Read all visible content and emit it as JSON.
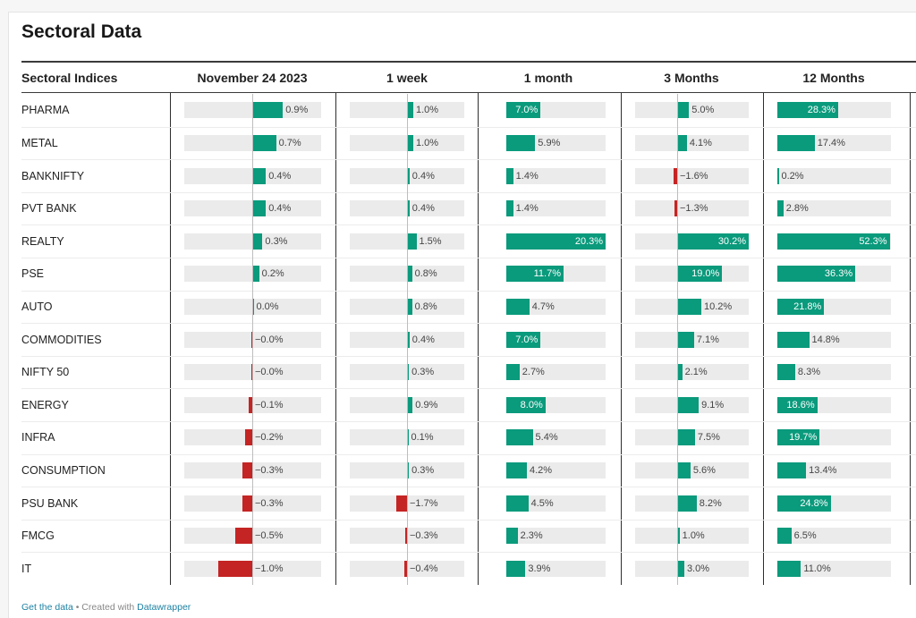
{
  "title": "Sectoral Data",
  "footer": {
    "get_data": "Get the data",
    "separator": " • Created with ",
    "created_with": "Datawrapper"
  },
  "colors": {
    "positive": "#0a9a7c",
    "negative": "#c42423",
    "track": "#ebebeb"
  },
  "chart_data": {
    "type": "table",
    "row_header": "Sectoral Indices",
    "columns": [
      "November 24 2023",
      "1 week",
      "1 month",
      "3 Months",
      "12 Months"
    ],
    "rows": [
      {
        "name": "PHARMA",
        "values": [
          0.9,
          1.0,
          7.0,
          5.0,
          28.3
        ]
      },
      {
        "name": "METAL",
        "values": [
          0.7,
          1.0,
          5.9,
          4.1,
          17.4
        ]
      },
      {
        "name": "BANKNIFTY",
        "values": [
          0.4,
          0.4,
          1.4,
          -1.6,
          0.2
        ]
      },
      {
        "name": "PVT BANK",
        "values": [
          0.4,
          0.4,
          1.4,
          -1.3,
          2.8
        ]
      },
      {
        "name": "REALTY",
        "values": [
          0.3,
          1.5,
          20.3,
          30.2,
          52.3
        ]
      },
      {
        "name": "PSE",
        "values": [
          0.2,
          0.8,
          11.7,
          19.0,
          36.3
        ]
      },
      {
        "name": "AUTO",
        "values": [
          0.0,
          0.8,
          4.7,
          10.2,
          21.8
        ]
      },
      {
        "name": "COMMODITIES",
        "values": [
          -0.0,
          0.4,
          7.0,
          7.1,
          14.8
        ]
      },
      {
        "name": "NIFTY 50",
        "values": [
          -0.0,
          0.3,
          2.7,
          2.1,
          8.3
        ]
      },
      {
        "name": "ENERGY",
        "values": [
          -0.1,
          0.9,
          8.0,
          9.1,
          18.6
        ]
      },
      {
        "name": "INFRA",
        "values": [
          -0.2,
          0.1,
          5.4,
          7.5,
          19.7
        ]
      },
      {
        "name": "CONSUMPTION",
        "values": [
          -0.3,
          0.3,
          4.2,
          5.6,
          13.4
        ]
      },
      {
        "name": "PSU BANK",
        "values": [
          -0.3,
          -1.7,
          4.5,
          8.2,
          24.8
        ]
      },
      {
        "name": "FMCG",
        "values": [
          -0.5,
          -0.3,
          2.3,
          1.0,
          6.5
        ]
      },
      {
        "name": "IT",
        "values": [
          -1.0,
          -0.4,
          3.9,
          3.0,
          11.0
        ]
      }
    ],
    "labels": [
      [
        "0.9%",
        "1.0%",
        "7.0%",
        "5.0%",
        "28.3%"
      ],
      [
        "0.7%",
        "1.0%",
        "5.9%",
        "4.1%",
        "17.4%"
      ],
      [
        "0.4%",
        "0.4%",
        "1.4%",
        "−1.6%",
        "0.2%"
      ],
      [
        "0.4%",
        "0.4%",
        "1.4%",
        "−1.3%",
        "2.8%"
      ],
      [
        "0.3%",
        "1.5%",
        "20.3%",
        "30.2%",
        "52.3%"
      ],
      [
        "0.2%",
        "0.8%",
        "11.7%",
        "19.0%",
        "36.3%"
      ],
      [
        "0.0%",
        "0.8%",
        "4.7%",
        "10.2%",
        "21.8%"
      ],
      [
        "−0.0%",
        "0.4%",
        "7.0%",
        "7.1%",
        "14.8%"
      ],
      [
        "−0.0%",
        "0.3%",
        "2.7%",
        "2.1%",
        "8.3%"
      ],
      [
        "−0.1%",
        "0.9%",
        "8.0%",
        "9.1%",
        "18.6%"
      ],
      [
        "−0.2%",
        "0.1%",
        "5.4%",
        "7.5%",
        "19.7%"
      ],
      [
        "−0.3%",
        "0.3%",
        "4.2%",
        "5.6%",
        "13.4%"
      ],
      [
        "−0.3%",
        "−1.7%",
        "4.5%",
        "8.2%",
        "24.8%"
      ],
      [
        "−0.5%",
        "−0.3%",
        "2.3%",
        "1.0%",
        "6.5%"
      ],
      [
        "−1.0%",
        "−0.4%",
        "3.9%",
        "3.0%",
        "11.0%"
      ]
    ]
  }
}
